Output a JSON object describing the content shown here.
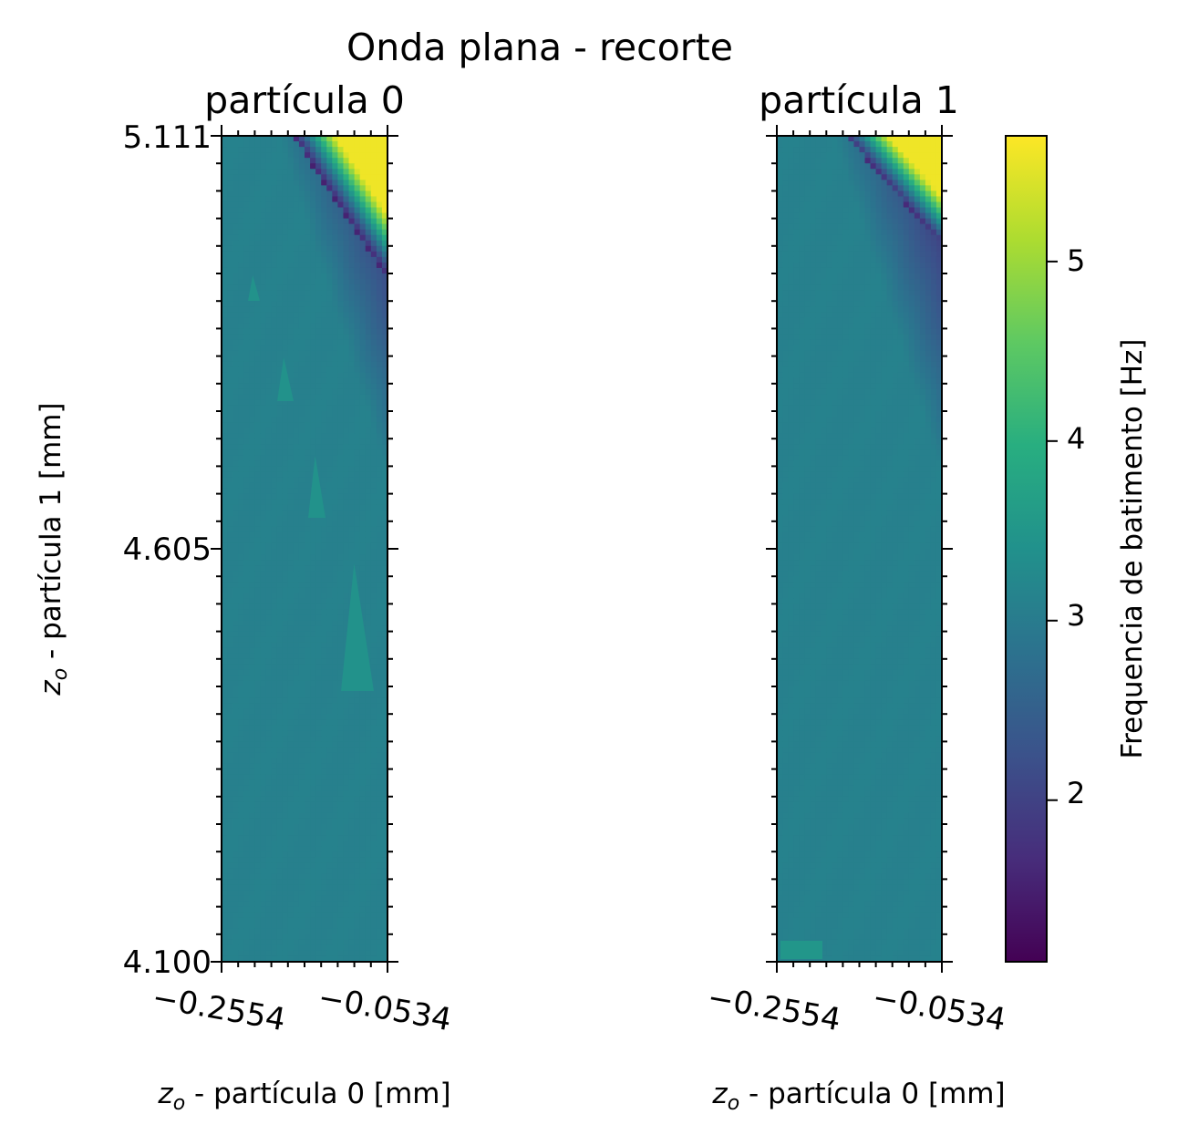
{
  "chart_data": {
    "type": "heatmap",
    "suptitle": "Onda plana - recorte",
    "colormap": "viridis",
    "colorbar": {
      "label": "Frequencia de batimento [Hz]",
      "range": [
        1.1,
        5.7
      ],
      "ticks": [
        "2",
        "3",
        "4",
        "5"
      ],
      "tick_values": [
        2,
        3,
        4,
        5
      ]
    },
    "panels": [
      {
        "title": "partícula 0",
        "xlabel": "z_o - partícula 0 [mm]",
        "xlabel_sub": "o",
        "xlabel_rest": " - partícula 0 [mm]",
        "ylabel": "z_o - partícula 1 [mm]",
        "ylabel_sub": "o",
        "ylabel_rest": " - partícula 1 [mm]",
        "xticks": [
          "−0.2554",
          "−0.0534"
        ],
        "xtick_values": [
          -0.2554,
          -0.0534
        ],
        "yticks": [
          "5.111",
          "4.605",
          "4.100"
        ],
        "ytick_values": [
          5.111,
          4.605,
          4.1
        ],
        "xlim": [
          -0.2554,
          -0.0534
        ],
        "ylim": [
          4.1,
          5.111
        ],
        "base_value": 3.1,
        "edge_value_start": 5.6,
        "edge_value_end": 1.5
      },
      {
        "title": "partícula 1",
        "xlabel": "z_o - partícula 0 [mm]",
        "xlabel_sub": "o",
        "xlabel_rest": " - partícula 0 [mm]",
        "xticks": [
          "−0.2554",
          "−0.0534"
        ],
        "xtick_values": [
          -0.2554,
          -0.0534
        ],
        "xlim": [
          -0.2554,
          -0.0534
        ],
        "ylim": [
          4.1,
          5.111
        ],
        "base_value": 3.1,
        "edge_value_start": 5.6,
        "edge_value_end": 1.6
      }
    ]
  }
}
